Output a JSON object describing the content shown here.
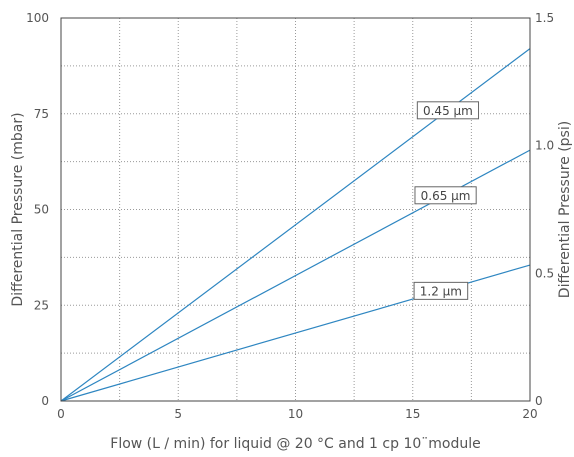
{
  "chart_data": {
    "type": "line",
    "xlabel": "Flow (L / min) for liquid @ 20 °C and 1 cp 10¨module",
    "ylabel": "Differential Pressure (mbar)",
    "y2label": "Differential Pressure (psi)",
    "xlim": [
      0,
      20
    ],
    "ylim": [
      0,
      100
    ],
    "y2lim": [
      0,
      1.5
    ],
    "x_ticks": [
      "0",
      "5",
      "10",
      "15",
      "20"
    ],
    "y_ticks": [
      "0",
      "25",
      "50",
      "75",
      "100"
    ],
    "y2_ticks": [
      "0",
      "0.5",
      "1.0",
      "1.5"
    ],
    "grid": true,
    "line_color": "#2e86c1",
    "series": [
      {
        "name": "0.45 µm",
        "x": [
          0,
          20
        ],
        "y": [
          0,
          92
        ]
      },
      {
        "name": "0.65 µm",
        "x": [
          0,
          20
        ],
        "y": [
          0,
          65.5
        ]
      },
      {
        "name": "1.2 µm",
        "x": [
          0,
          20
        ],
        "y": [
          0,
          35.5
        ]
      }
    ],
    "annotations": [
      {
        "series": "0.45 µm",
        "text": "0.45 µm",
        "x": 16.5
      },
      {
        "series": "0.65 µm",
        "text": "0.65 µm",
        "x": 16.4
      },
      {
        "series": "1.2 µm",
        "text": "1.2 µm",
        "x": 16.2
      }
    ]
  }
}
